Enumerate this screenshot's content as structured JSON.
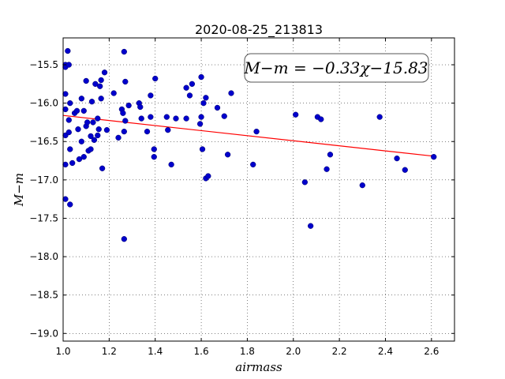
{
  "chart_data": {
    "type": "scatter",
    "title": "2020-08-25_213813",
    "xlabel": "airmass",
    "ylabel": "M−m",
    "xlim": [
      1.0,
      2.7
    ],
    "ylim": [
      -19.1,
      -15.15
    ],
    "x_ticks": [
      1.0,
      1.2,
      1.4,
      1.6,
      1.8,
      2.0,
      2.2,
      2.4,
      2.6
    ],
    "x_tick_labels": [
      "1.0",
      "1.2",
      "1.4",
      "1.6",
      "1.8",
      "2.0",
      "2.2",
      "2.4",
      "2.6"
    ],
    "y_ticks": [
      -15.5,
      -16.0,
      -16.5,
      -17.0,
      -17.5,
      -18.0,
      -18.5,
      -19.0
    ],
    "y_tick_labels": [
      "−15.5",
      "−16.0",
      "−16.5",
      "−17.0",
      "−17.5",
      "−18.0",
      "−18.5",
      "−19.0"
    ],
    "grid": true,
    "annotation": "M−m = −0.33χ−15.83",
    "fit_line": {
      "slope": -0.33,
      "intercept": -15.83,
      "x_range": [
        1.0,
        2.61
      ],
      "color": "#ff0000"
    },
    "point_color": "#0000cc",
    "points": [
      [
        1.01,
        -15.5
      ],
      [
        1.01,
        -15.53
      ],
      [
        1.02,
        -15.32
      ],
      [
        1.025,
        -15.5
      ],
      [
        1.01,
        -15.88
      ],
      [
        1.01,
        -16.08
      ],
      [
        1.03,
        -16.0
      ],
      [
        1.025,
        -16.22
      ],
      [
        1.01,
        -16.42
      ],
      [
        1.025,
        -16.38
      ],
      [
        1.01,
        -16.8
      ],
      [
        1.03,
        -16.6
      ],
      [
        1.04,
        -16.78
      ],
      [
        1.01,
        -17.25
      ],
      [
        1.03,
        -17.32
      ],
      [
        1.05,
        -16.13
      ],
      [
        1.06,
        -16.1
      ],
      [
        1.065,
        -16.34
      ],
      [
        1.07,
        -16.73
      ],
      [
        1.08,
        -16.5
      ],
      [
        1.08,
        -15.94
      ],
      [
        1.09,
        -16.1
      ],
      [
        1.09,
        -16.7
      ],
      [
        1.1,
        -15.71
      ],
      [
        1.1,
        -16.3
      ],
      [
        1.105,
        -16.25
      ],
      [
        1.11,
        -16.62
      ],
      [
        1.12,
        -16.6
      ],
      [
        1.125,
        -15.98
      ],
      [
        1.12,
        -16.43
      ],
      [
        1.13,
        -16.25
      ],
      [
        1.135,
        -16.48
      ],
      [
        1.14,
        -15.75
      ],
      [
        1.15,
        -16.42
      ],
      [
        1.15,
        -16.2
      ],
      [
        1.155,
        -16.34
      ],
      [
        1.16,
        -15.78
      ],
      [
        1.165,
        -15.7
      ],
      [
        1.165,
        -15.94
      ],
      [
        1.17,
        -16.85
      ],
      [
        1.18,
        -15.6
      ],
      [
        1.19,
        -16.35
      ],
      [
        1.22,
        -15.87
      ],
      [
        1.24,
        -16.45
      ],
      [
        1.255,
        -16.08
      ],
      [
        1.26,
        -16.13
      ],
      [
        1.265,
        -16.37
      ],
      [
        1.265,
        -15.33
      ],
      [
        1.27,
        -15.72
      ],
      [
        1.27,
        -16.23
      ],
      [
        1.265,
        -17.77
      ],
      [
        1.285,
        -16.03
      ],
      [
        1.33,
        -16.0
      ],
      [
        1.335,
        -16.05
      ],
      [
        1.34,
        -16.2
      ],
      [
        1.365,
        -16.37
      ],
      [
        1.38,
        -16.18
      ],
      [
        1.38,
        -15.9
      ],
      [
        1.395,
        -16.6
      ],
      [
        1.395,
        -16.7
      ],
      [
        1.4,
        -15.68
      ],
      [
        1.45,
        -16.18
      ],
      [
        1.455,
        -16.35
      ],
      [
        1.47,
        -16.8
      ],
      [
        1.49,
        -16.2
      ],
      [
        1.535,
        -15.8
      ],
      [
        1.535,
        -16.2
      ],
      [
        1.55,
        -15.9
      ],
      [
        1.56,
        -15.75
      ],
      [
        1.595,
        -16.27
      ],
      [
        1.6,
        -15.66
      ],
      [
        1.6,
        -16.18
      ],
      [
        1.605,
        -16.6
      ],
      [
        1.61,
        -16.0
      ],
      [
        1.62,
        -15.93
      ],
      [
        1.62,
        -16.98
      ],
      [
        1.63,
        -16.95
      ],
      [
        1.67,
        -16.06
      ],
      [
        1.7,
        -16.17
      ],
      [
        1.715,
        -16.67
      ],
      [
        1.73,
        -15.87
      ],
      [
        1.825,
        -16.8
      ],
      [
        1.84,
        -16.37
      ],
      [
        2.01,
        -16.15
      ],
      [
        2.05,
        -17.03
      ],
      [
        2.075,
        -17.6
      ],
      [
        2.105,
        -16.18
      ],
      [
        2.12,
        -16.21
      ],
      [
        2.145,
        -16.86
      ],
      [
        2.16,
        -16.67
      ],
      [
        2.3,
        -17.07
      ],
      [
        2.375,
        -16.18
      ],
      [
        2.45,
        -16.72
      ],
      [
        2.485,
        -16.87
      ],
      [
        2.61,
        -16.7
      ]
    ]
  }
}
